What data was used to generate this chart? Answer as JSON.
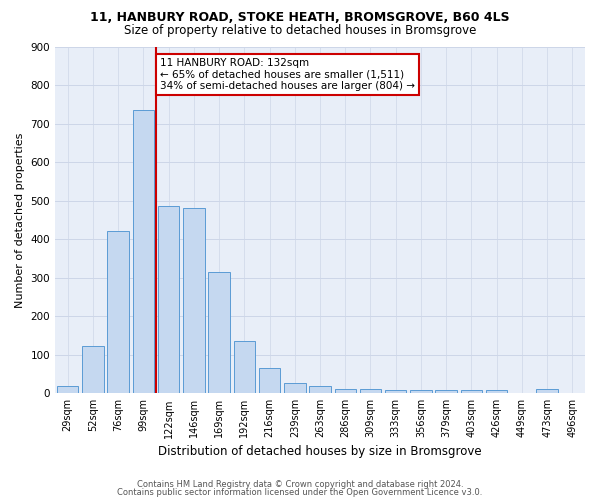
{
  "title_line1": "11, HANBURY ROAD, STOKE HEATH, BROMSGROVE, B60 4LS",
  "title_line2": "Size of property relative to detached houses in Bromsgrove",
  "xlabel": "Distribution of detached houses by size in Bromsgrove",
  "ylabel": "Number of detached properties",
  "categories": [
    "29sqm",
    "52sqm",
    "76sqm",
    "99sqm",
    "122sqm",
    "146sqm",
    "169sqm",
    "192sqm",
    "216sqm",
    "239sqm",
    "263sqm",
    "286sqm",
    "309sqm",
    "333sqm",
    "356sqm",
    "379sqm",
    "403sqm",
    "426sqm",
    "449sqm",
    "473sqm",
    "496sqm"
  ],
  "values": [
    18,
    122,
    420,
    735,
    485,
    480,
    315,
    135,
    65,
    28,
    20,
    12,
    10,
    8,
    8,
    8,
    8,
    8,
    0,
    10,
    0
  ],
  "bar_color": "#c5d8f0",
  "bar_edge_color": "#5b9bd5",
  "annotation_title": "11 HANBURY ROAD: 132sqm",
  "annotation_line2": "← 65% of detached houses are smaller (1,511)",
  "annotation_line3": "34% of semi-detached houses are larger (804) →",
  "vline_color": "#cc0000",
  "annotation_box_color": "#ffffff",
  "annotation_box_edge_color": "#cc0000",
  "grid_color": "#cdd6e8",
  "background_color": "#e8eef8",
  "ylim": [
    0,
    900
  ],
  "yticks": [
    0,
    100,
    200,
    300,
    400,
    500,
    600,
    700,
    800,
    900
  ],
  "footer_line1": "Contains HM Land Registry data © Crown copyright and database right 2024.",
  "footer_line2": "Contains public sector information licensed under the Open Government Licence v3.0.",
  "title_fontsize": 9,
  "subtitle_fontsize": 8.5,
  "ylabel_fontsize": 8,
  "xlabel_fontsize": 8.5,
  "tick_fontsize": 7,
  "ytick_fontsize": 7.5,
  "footer_fontsize": 6,
  "annot_fontsize": 7.5,
  "vline_x_index": 4.0
}
